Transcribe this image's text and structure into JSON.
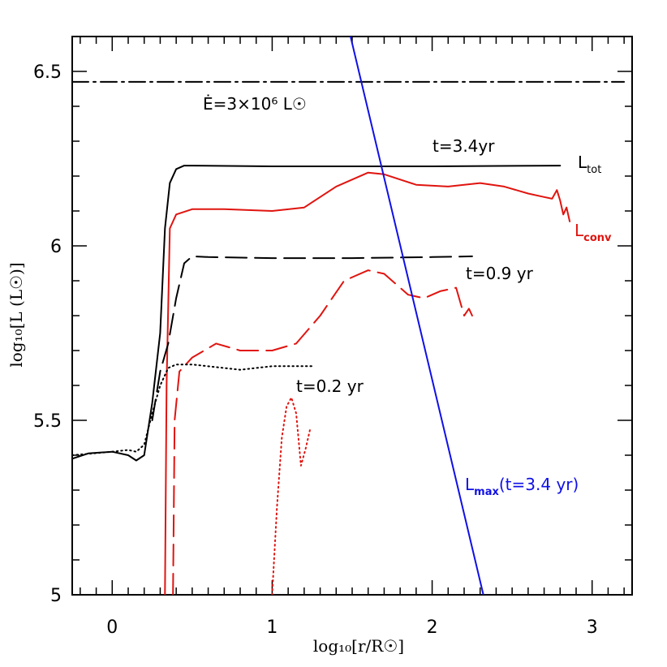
{
  "chart_data": {
    "type": "line",
    "xlabel": "log₁₀[r/R☉]",
    "ylabel": "log₁₀[L (L☉)]",
    "xlim": [
      -0.25,
      3.25
    ],
    "ylim": [
      5.0,
      6.6
    ],
    "xticks": [
      0,
      1,
      2,
      3
    ],
    "yticks": [
      5,
      5.5,
      6,
      6.5
    ],
    "xtick_labels": [
      "0",
      "1",
      "2",
      "3"
    ],
    "ytick_labels": [
      "5",
      "5.5",
      "6",
      "6.5"
    ],
    "grid": false,
    "series": [
      {
        "name": "Edot",
        "color": "#000000",
        "style": "dashdot",
        "x": [
          -0.25,
          3.2
        ],
        "y": [
          6.47,
          6.47
        ]
      },
      {
        "name": "L_tot t=3.4yr",
        "color": "#000000",
        "style": "solid",
        "x": [
          -0.25,
          -0.15,
          0.0,
          0.1,
          0.15,
          0.2,
          0.25,
          0.3,
          0.33,
          0.36,
          0.4,
          0.45,
          0.5,
          1.0,
          2.0,
          2.8
        ],
        "y": [
          5.39,
          5.405,
          5.41,
          5.4,
          5.385,
          5.4,
          5.55,
          5.75,
          6.05,
          6.18,
          6.22,
          6.23,
          6.23,
          6.228,
          6.228,
          6.23
        ]
      },
      {
        "name": "L_conv t=3.4yr",
        "color": "#e0140f",
        "style": "solid",
        "x": [
          0.33,
          0.34,
          0.36,
          0.4,
          0.5,
          0.7,
          1.0,
          1.2,
          1.4,
          1.6,
          1.7,
          1.9,
          2.1,
          2.3,
          2.45,
          2.6,
          2.7,
          2.75,
          2.78,
          2.8,
          2.82,
          2.84,
          2.86
        ],
        "y": [
          5.0,
          5.6,
          6.05,
          6.09,
          6.105,
          6.105,
          6.1,
          6.11,
          6.17,
          6.21,
          6.205,
          6.175,
          6.17,
          6.18,
          6.17,
          6.15,
          6.14,
          6.135,
          6.16,
          6.13,
          6.09,
          6.11,
          6.07
        ]
      },
      {
        "name": "L_tot t=0.9yr",
        "color": "#000000",
        "style": "longdash",
        "x": [
          0.25,
          0.3,
          0.35,
          0.4,
          0.45,
          0.5,
          0.6,
          1.0,
          1.5,
          2.0,
          2.25
        ],
        "y": [
          5.5,
          5.64,
          5.72,
          5.85,
          5.95,
          5.97,
          5.968,
          5.965,
          5.965,
          5.968,
          5.97
        ]
      },
      {
        "name": "L_conv t=0.9yr",
        "color": "#e0140f",
        "style": "longdash",
        "x": [
          0.38,
          0.39,
          0.42,
          0.5,
          0.65,
          0.8,
          1.0,
          1.15,
          1.3,
          1.45,
          1.6,
          1.7,
          1.85,
          1.95,
          2.05,
          2.15,
          2.2,
          2.23,
          2.25
        ],
        "y": [
          5.0,
          5.5,
          5.64,
          5.68,
          5.72,
          5.7,
          5.7,
          5.72,
          5.8,
          5.9,
          5.93,
          5.92,
          5.86,
          5.85,
          5.87,
          5.88,
          5.8,
          5.82,
          5.8
        ]
      },
      {
        "name": "L_tot t=0.2yr",
        "color": "#000000",
        "style": "dotted",
        "x": [
          -0.25,
          0.0,
          0.1,
          0.15,
          0.2,
          0.25,
          0.3,
          0.35,
          0.4,
          0.5,
          0.8,
          1.0,
          1.25
        ],
        "y": [
          5.4,
          5.41,
          5.415,
          5.41,
          5.43,
          5.52,
          5.6,
          5.65,
          5.66,
          5.66,
          5.645,
          5.655,
          5.655
        ]
      },
      {
        "name": "L_conv t=0.2yr",
        "color": "#e0140f",
        "style": "dotted",
        "x": [
          1.0,
          1.03,
          1.06,
          1.09,
          1.12,
          1.15,
          1.18,
          1.21,
          1.24
        ],
        "y": [
          5.0,
          5.25,
          5.45,
          5.54,
          5.565,
          5.52,
          5.37,
          5.42,
          5.48
        ]
      },
      {
        "name": "L_max t=3.4yr",
        "color": "#1010e6",
        "style": "solid",
        "x": [
          1.49,
          2.32
        ],
        "y": [
          6.6,
          5.0
        ]
      }
    ],
    "annotations": {
      "edot": "Ė=3×10⁶ L☉",
      "t34": "t=3.4yr",
      "ltot_main": "L",
      "ltot_sub": "tot",
      "lconv_main": "L",
      "lconv_sub": "conv",
      "t09": "t=0.9 yr",
      "t02": "t=0.2 yr",
      "lmax_main": "L",
      "lmax_sub": "max",
      "lmax_rest": "(t=3.4 yr)"
    }
  }
}
